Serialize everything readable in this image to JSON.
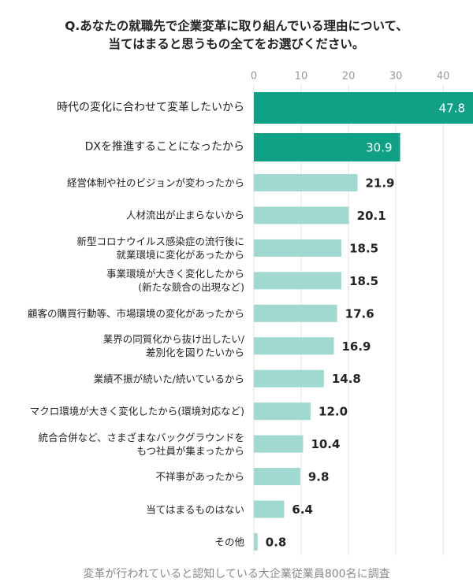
{
  "chart_data": {
    "type": "bar",
    "orientation": "horizontal",
    "title": "Q.あなたの就職先で企業変革に取り組んでいる理由について、\n当てはまると思うもの全てをお選びください。",
    "footnote": "変革が行われていると認知している大企業従業員800名に調査",
    "categories": [
      "時代の変化に合わせて変革したいから",
      "DXを推進することになったから",
      "経営体制や社のビジョンが変わったから",
      "人材流出が止まらないから",
      "新型コロナウイルス感染症の流行後に\n就業環境に変化があったから",
      "事業環境が大きく変化したから\n(新たな競合の出現など)",
      "顧客の購買行動等、市場環境の変化があったから",
      "業界の同質化から抜け出したい/\n差別化を図りたいから",
      "業績不振が続いた/続いているから",
      "マクロ環境が大きく変化したから(環境対応など)",
      "統合合併など、さまざまなバックグラウンドを\nもつ社員が集まったから",
      "不祥事があったから",
      "当てはまるものはない",
      "その他"
    ],
    "values": [
      47.8,
      30.9,
      21.9,
      20.1,
      18.5,
      18.5,
      17.6,
      16.9,
      14.8,
      12.0,
      10.4,
      9.8,
      6.4,
      0.8
    ],
    "value_labels": [
      "47.8",
      "30.9",
      "21.9",
      "20.1",
      "18.5",
      "18.5",
      "17.6",
      "16.9",
      "14.8",
      "12.0",
      "10.4",
      "9.8",
      "6.4",
      "0.8"
    ],
    "colors": [
      "#0fa086",
      "#0fa086",
      "#9fd9cf",
      "#9fd9cf",
      "#9fd9cf",
      "#9fd9cf",
      "#9fd9cf",
      "#9fd9cf",
      "#9fd9cf",
      "#9fd9cf",
      "#9fd9cf",
      "#9fd9cf",
      "#9fd9cf",
      "#9fd9cf"
    ],
    "xlim": [
      0,
      46.3
    ],
    "xticks": [
      0,
      10,
      20,
      30,
      40
    ],
    "grid": true
  }
}
